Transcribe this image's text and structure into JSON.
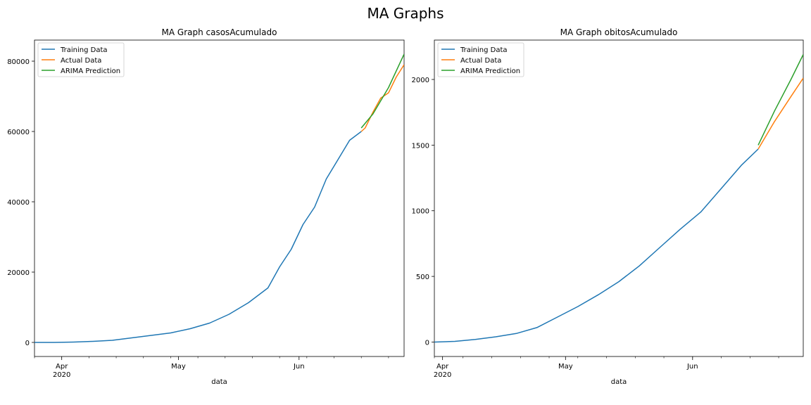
{
  "figure": {
    "title": "MA Graphs"
  },
  "legend_placement": "top-left",
  "colors": {
    "training": "#1f77b4",
    "actual": "#ff7f0e",
    "prediction": "#2ca02c"
  },
  "chart_data": [
    {
      "type": "line",
      "title": "MA Graph casosAcumulado",
      "xlabel": "data",
      "ylabel": "",
      "xlim": [
        "2020-03-25",
        "2020-06-28"
      ],
      "ylim": [
        -4000,
        86000
      ],
      "yticks": [
        0,
        20000,
        40000,
        60000,
        80000
      ],
      "xticks": [
        {
          "date": "2020-04-01",
          "label": "Apr",
          "sublabel": "2020"
        },
        {
          "date": "2020-05-01",
          "label": "May",
          "sublabel": ""
        },
        {
          "date": "2020-06-01",
          "label": "Jun",
          "sublabel": ""
        }
      ],
      "legend": [
        "Training Data",
        "Actual Data",
        "ARIMA Prediction"
      ],
      "series": [
        {
          "name": "Training Data",
          "color": "#1f77b4",
          "x": [
            "2020-03-25",
            "2020-03-30",
            "2020-04-04",
            "2020-04-09",
            "2020-04-14",
            "2020-04-19",
            "2020-04-24",
            "2020-04-29",
            "2020-05-04",
            "2020-05-09",
            "2020-05-14",
            "2020-05-19",
            "2020-05-24",
            "2020-05-27",
            "2020-05-30",
            "2020-06-02",
            "2020-06-05",
            "2020-06-08",
            "2020-06-11",
            "2020-06-14",
            "2020-06-17"
          ],
          "values": [
            0,
            0,
            100,
            300,
            600,
            1300,
            2000,
            2700,
            3900,
            5500,
            8000,
            11300,
            15500,
            21500,
            26500,
            33500,
            38500,
            46500,
            52000,
            57500,
            60000
          ]
        },
        {
          "name": "Actual Data",
          "color": "#ff7f0e",
          "x": [
            "2020-06-17",
            "2020-06-18",
            "2020-06-20",
            "2020-06-22",
            "2020-06-24",
            "2020-06-26",
            "2020-06-28"
          ],
          "values": [
            60000,
            61000,
            65500,
            69500,
            71000,
            75500,
            79000
          ]
        },
        {
          "name": "ARIMA Prediction",
          "color": "#2ca02c",
          "x": [
            "2020-06-17",
            "2020-06-20",
            "2020-06-24",
            "2020-06-28"
          ],
          "values": [
            61000,
            65000,
            72500,
            82000
          ]
        }
      ]
    },
    {
      "type": "line",
      "title": "MA Graph obitosAcumulado",
      "xlabel": "data",
      "ylabel": "",
      "xlim": [
        "2020-03-30",
        "2020-06-28"
      ],
      "ylim": [
        -110,
        2300
      ],
      "yticks": [
        0,
        500,
        1000,
        1500,
        2000
      ],
      "xticks": [
        {
          "date": "2020-04-01",
          "label": "Apr",
          "sublabel": "2020"
        },
        {
          "date": "2020-05-01",
          "label": "May",
          "sublabel": ""
        },
        {
          "date": "2020-06-01",
          "label": "Jun",
          "sublabel": ""
        }
      ],
      "legend": [
        "Training Data",
        "Actual Data",
        "ARIMA Prediction"
      ],
      "series": [
        {
          "name": "Training Data",
          "color": "#1f77b4",
          "x": [
            "2020-03-30",
            "2020-04-04",
            "2020-04-09",
            "2020-04-14",
            "2020-04-19",
            "2020-04-24",
            "2020-04-29",
            "2020-05-04",
            "2020-05-09",
            "2020-05-14",
            "2020-05-19",
            "2020-05-24",
            "2020-05-29",
            "2020-06-03",
            "2020-06-08",
            "2020-06-13",
            "2020-06-17"
          ],
          "values": [
            0,
            5,
            20,
            40,
            65,
            110,
            190,
            270,
            360,
            460,
            580,
            720,
            860,
            990,
            1170,
            1350,
            1470
          ]
        },
        {
          "name": "Actual Data",
          "color": "#ff7f0e",
          "x": [
            "2020-06-17",
            "2020-06-21",
            "2020-06-25",
            "2020-06-28"
          ],
          "values": [
            1470,
            1680,
            1870,
            2010
          ]
        },
        {
          "name": "ARIMA Prediction",
          "color": "#2ca02c",
          "x": [
            "2020-06-17",
            "2020-06-21",
            "2020-06-25",
            "2020-06-28"
          ],
          "values": [
            1500,
            1760,
            2000,
            2190
          ]
        }
      ]
    }
  ]
}
